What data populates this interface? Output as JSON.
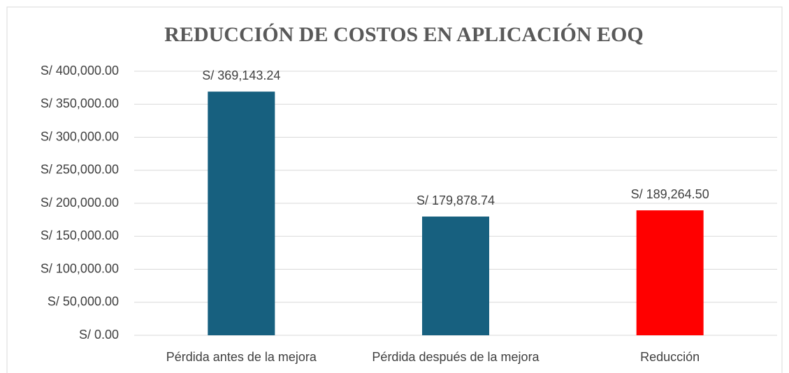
{
  "chart_data": {
    "type": "bar",
    "title": "REDUCCIÓN DE COSTOS EN APLICACIÓN EOQ",
    "categories": [
      "Pérdida antes de la mejora",
      "Pérdida después de la mejora",
      "Reducción"
    ],
    "values": [
      369143.24,
      179878.74,
      189264.5
    ],
    "value_labels": [
      "S/ 369,143.24",
      "S/ 179,878.74",
      "S/ 189,264.50"
    ],
    "colors": [
      "#17607f",
      "#17607f",
      "#ff0000"
    ],
    "ylim": [
      0,
      400000
    ],
    "yticks": [
      {
        "value": 0,
        "label": "S/ 0.00"
      },
      {
        "value": 50000,
        "label": "S/ 50,000.00"
      },
      {
        "value": 100000,
        "label": "S/ 100,000.00"
      },
      {
        "value": 150000,
        "label": "S/ 150,000.00"
      },
      {
        "value": 200000,
        "label": "S/ 200,000.00"
      },
      {
        "value": 250000,
        "label": "S/ 250,000.00"
      },
      {
        "value": 300000,
        "label": "S/ 300,000.00"
      },
      {
        "value": 350000,
        "label": "S/ 350,000.00"
      },
      {
        "value": 400000,
        "label": "S/ 400,000.00"
      }
    ],
    "grid": true
  }
}
